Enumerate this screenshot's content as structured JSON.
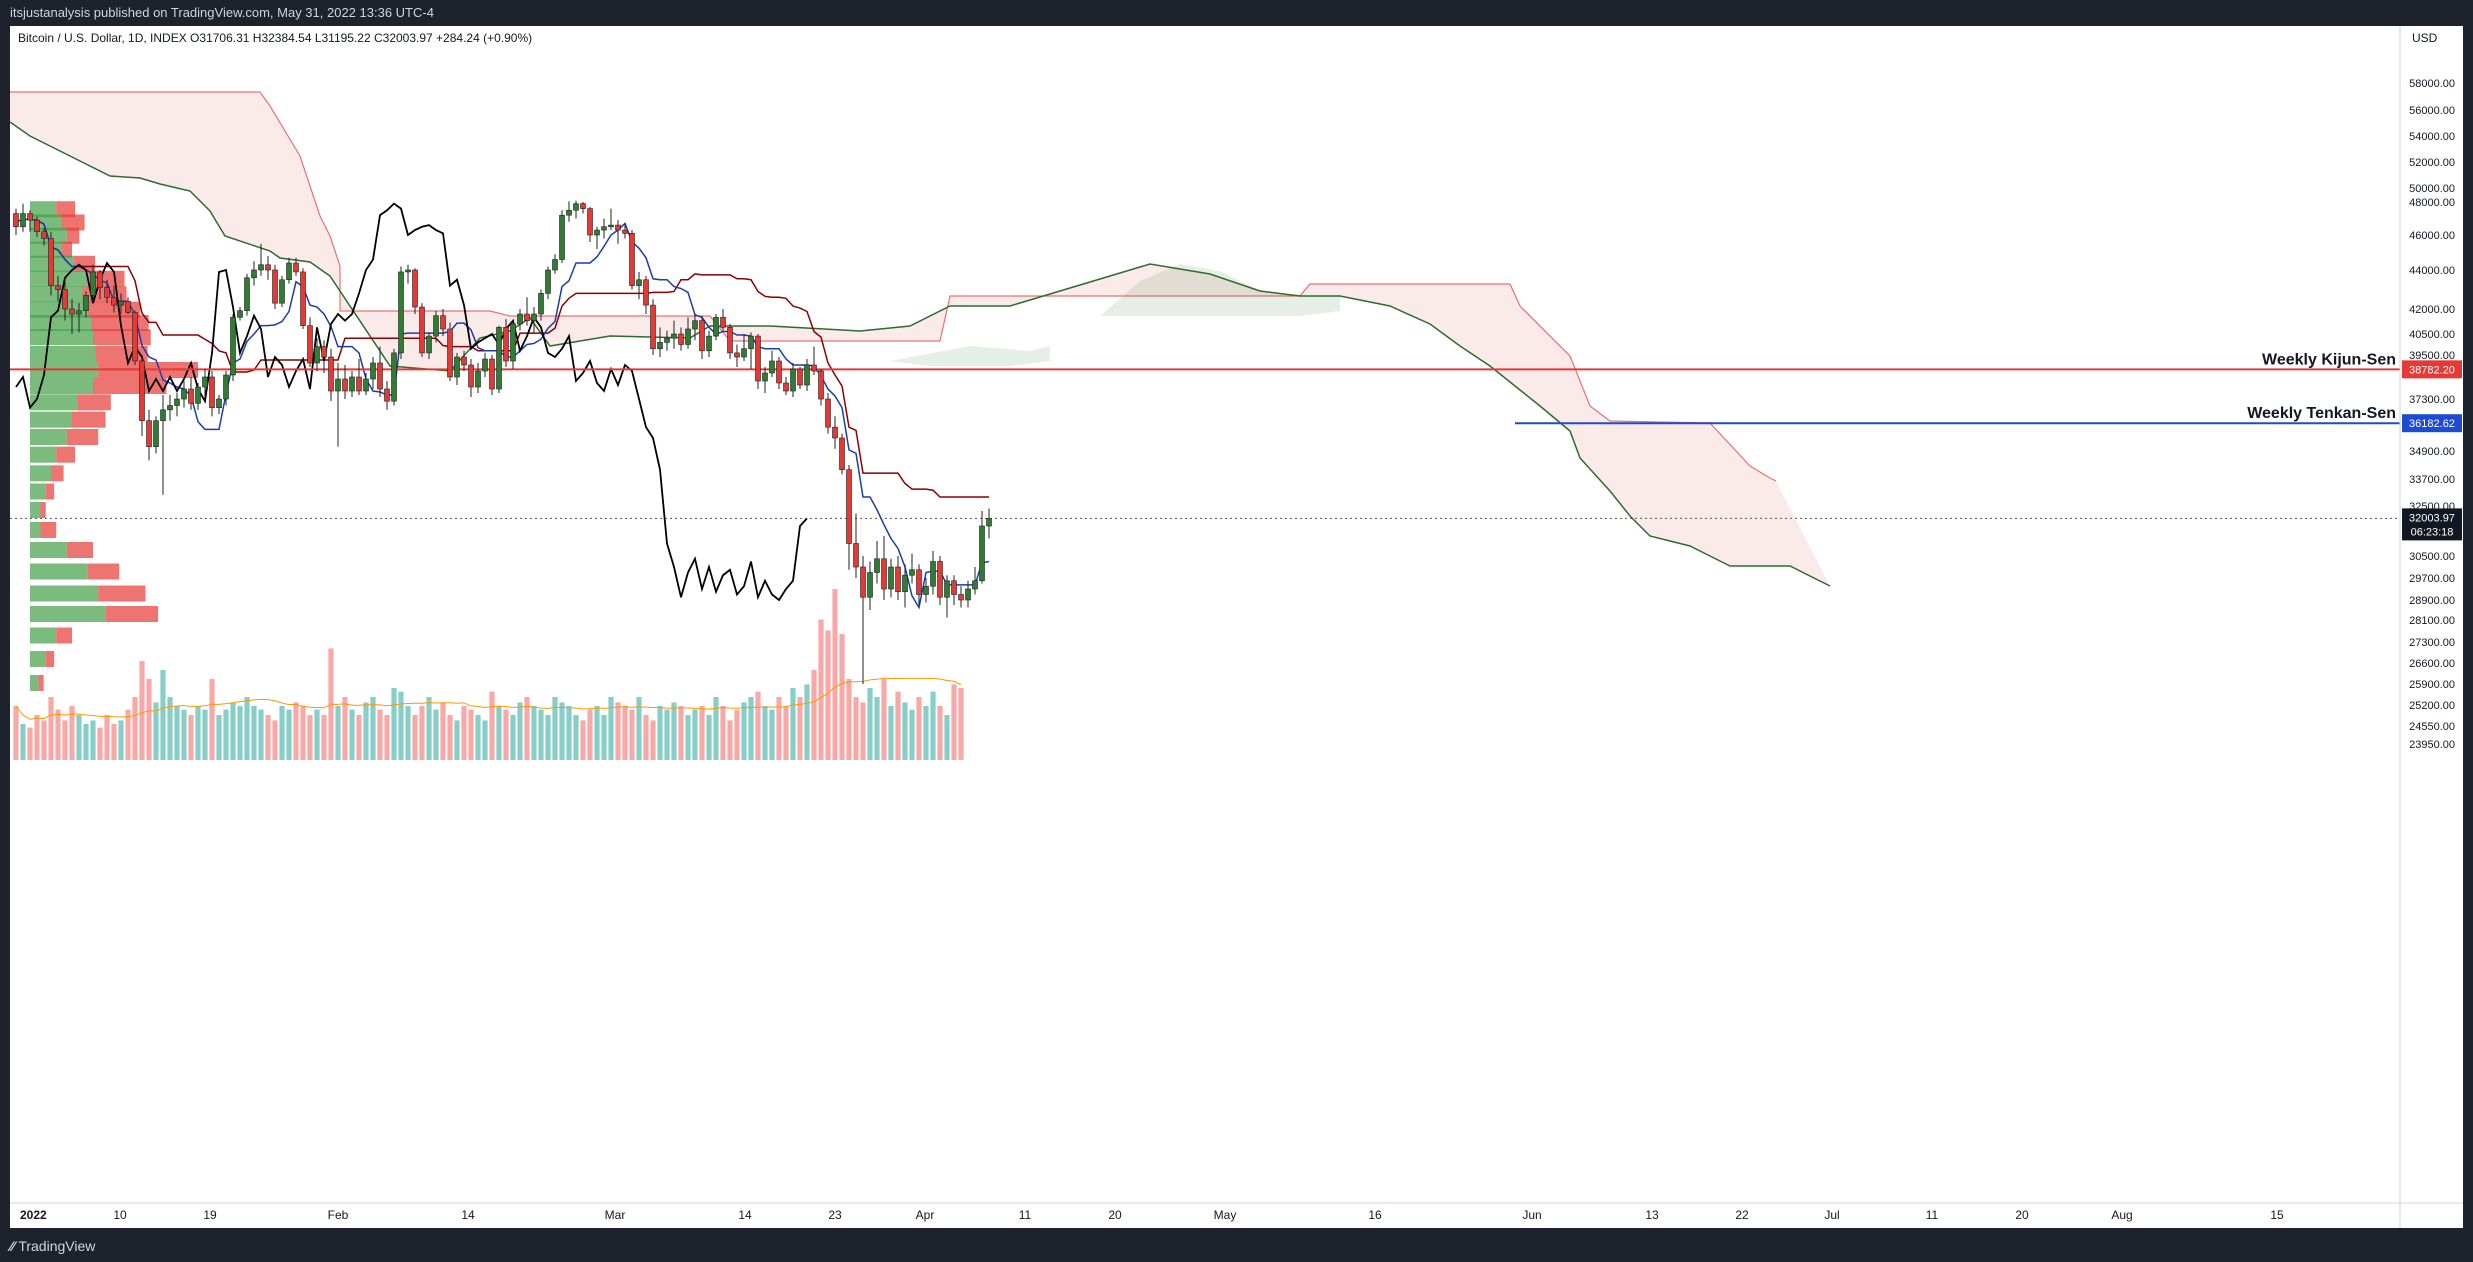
{
  "header": {
    "publisher": "itsjustanalysis published on TradingView.com, May 31, 2022 13:36 UTC-4"
  },
  "footer": {
    "brand": "TradingView"
  },
  "chart_data": {
    "type": "candlestick",
    "symbol_line": "Bitcoin / U.S. Dollar, 1D, INDEX  O31706.31  H32384.54  L31195.22  C32003.97  +284.24 (+0.90%)",
    "currency": "USD",
    "y_tick_labels": [
      "58000.00",
      "56000.00",
      "54000.00",
      "52000.00",
      "50000.00",
      "48000.00",
      "46000.00",
      "44000.00",
      "42000.00",
      "40500.00",
      "39500.00",
      "37300.00",
      "34900.00",
      "33700.00",
      "32500.00",
      "30500.00",
      "29700.00",
      "28900.00",
      "28100.00",
      "27300.00",
      "26600.00",
      "25900.00",
      "25200.00",
      "24550.00",
      "23950.00"
    ],
    "x_tick_labels": [
      "2022",
      "10",
      "19",
      "Feb",
      "14",
      "Mar",
      "14",
      "23",
      "Apr",
      "11",
      "20",
      "May",
      "16",
      "Jun",
      "13",
      "22",
      "Jul",
      "11",
      "20",
      "Aug",
      "15"
    ],
    "horizontal_lines": [
      {
        "label": "Weekly Kijun-Sen",
        "value": 38782.2,
        "value_label": "38782.20",
        "color": "#e53935"
      },
      {
        "label": "Weekly Tenkan-Sen",
        "value": 36182.62,
        "value_label": "36182.62",
        "color": "#1e4bd2"
      }
    ],
    "last_price": {
      "value": 32003.97,
      "label": "32003.97",
      "countdown": "06:23:18"
    },
    "colors": {
      "up": "#2e7d32",
      "down": "#e53935",
      "kijun": "#8b0000",
      "tenkan": "#1a3cad",
      "chikou": "#000000",
      "span_b": "#e57373",
      "span_a": "#2e6b2e"
    },
    "candles": [
      {
        "o": 47300,
        "h": 47600,
        "l": 46000,
        "c": 46500
      },
      {
        "o": 46500,
        "h": 47900,
        "l": 46200,
        "c": 47300
      },
      {
        "o": 47300,
        "h": 47500,
        "l": 46200,
        "c": 46900
      },
      {
        "o": 46900,
        "h": 47100,
        "l": 45900,
        "c": 46200
      },
      {
        "o": 46200,
        "h": 46400,
        "l": 45400,
        "c": 45800
      },
      {
        "o": 45800,
        "h": 46200,
        "l": 42700,
        "c": 43200
      },
      {
        "o": 43200,
        "h": 43700,
        "l": 42400,
        "c": 43000
      },
      {
        "o": 43000,
        "h": 43500,
        "l": 41300,
        "c": 42000
      },
      {
        "o": 42000,
        "h": 42500,
        "l": 40500,
        "c": 41700
      },
      {
        "o": 41700,
        "h": 42300,
        "l": 40600,
        "c": 41900
      },
      {
        "o": 41900,
        "h": 42900,
        "l": 41500,
        "c": 42700
      },
      {
        "o": 42700,
        "h": 44300,
        "l": 42400,
        "c": 43900
      },
      {
        "o": 43900,
        "h": 44000,
        "l": 42500,
        "c": 43100
      },
      {
        "o": 43100,
        "h": 43500,
        "l": 42300,
        "c": 42600
      },
      {
        "o": 42600,
        "h": 43200,
        "l": 41800,
        "c": 42200
      },
      {
        "o": 42200,
        "h": 42800,
        "l": 41700,
        "c": 42400
      },
      {
        "o": 42400,
        "h": 42600,
        "l": 41700,
        "c": 41800
      },
      {
        "o": 41800,
        "h": 41900,
        "l": 39000,
        "c": 39200
      },
      {
        "o": 39200,
        "h": 39500,
        "l": 35600,
        "c": 36300
      },
      {
        "o": 36300,
        "h": 36800,
        "l": 34500,
        "c": 35100
      },
      {
        "o": 35100,
        "h": 36500,
        "l": 34800,
        "c": 36300
      },
      {
        "o": 36300,
        "h": 37500,
        "l": 33000,
        "c": 36800
      },
      {
        "o": 36800,
        "h": 37500,
        "l": 36300,
        "c": 37000
      },
      {
        "o": 37000,
        "h": 37600,
        "l": 36500,
        "c": 37300
      },
      {
        "o": 37300,
        "h": 38200,
        "l": 36900,
        "c": 37800
      },
      {
        "o": 37800,
        "h": 38400,
        "l": 36800,
        "c": 37100
      },
      {
        "o": 37100,
        "h": 38100,
        "l": 36800,
        "c": 37900
      },
      {
        "o": 37900,
        "h": 38800,
        "l": 37400,
        "c": 38400
      },
      {
        "o": 38400,
        "h": 38700,
        "l": 36500,
        "c": 36900
      },
      {
        "o": 36900,
        "h": 37500,
        "l": 36600,
        "c": 37300
      },
      {
        "o": 37300,
        "h": 38700,
        "l": 37000,
        "c": 38500
      },
      {
        "o": 38500,
        "h": 41700,
        "l": 38200,
        "c": 41500
      },
      {
        "o": 41500,
        "h": 42100,
        "l": 41300,
        "c": 41900
      },
      {
        "o": 41900,
        "h": 43800,
        "l": 41600,
        "c": 43600
      },
      {
        "o": 43600,
        "h": 44500,
        "l": 43200,
        "c": 44000
      },
      {
        "o": 44000,
        "h": 45500,
        "l": 43700,
        "c": 44300
      },
      {
        "o": 44300,
        "h": 44800,
        "l": 43500,
        "c": 44000
      },
      {
        "o": 44000,
        "h": 44300,
        "l": 42000,
        "c": 42300
      },
      {
        "o": 42300,
        "h": 43700,
        "l": 42100,
        "c": 43500
      },
      {
        "o": 43500,
        "h": 44700,
        "l": 43300,
        "c": 44400
      },
      {
        "o": 44400,
        "h": 44700,
        "l": 43700,
        "c": 43900
      },
      {
        "o": 43900,
        "h": 44100,
        "l": 40800,
        "c": 41000
      },
      {
        "o": 41000,
        "h": 41500,
        "l": 38900,
        "c": 39100
      },
      {
        "o": 39100,
        "h": 40300,
        "l": 38700,
        "c": 39900
      },
      {
        "o": 39900,
        "h": 40200,
        "l": 38600,
        "c": 39400
      },
      {
        "o": 39400,
        "h": 39800,
        "l": 37200,
        "c": 37700
      },
      {
        "o": 37700,
        "h": 39100,
        "l": 35100,
        "c": 38300
      },
      {
        "o": 38300,
        "h": 39000,
        "l": 37300,
        "c": 37700
      },
      {
        "o": 37700,
        "h": 38700,
        "l": 37400,
        "c": 38400
      },
      {
        "o": 38400,
        "h": 39300,
        "l": 37500,
        "c": 37700
      },
      {
        "o": 37700,
        "h": 38600,
        "l": 37500,
        "c": 38300
      },
      {
        "o": 38300,
        "h": 39400,
        "l": 37800,
        "c": 39100
      },
      {
        "o": 39100,
        "h": 39900,
        "l": 37400,
        "c": 37800
      },
      {
        "o": 37800,
        "h": 38200,
        "l": 36800,
        "c": 37200
      },
      {
        "o": 37200,
        "h": 39800,
        "l": 37000,
        "c": 39600
      },
      {
        "o": 39600,
        "h": 44200,
        "l": 39300,
        "c": 43900
      },
      {
        "o": 43900,
        "h": 44300,
        "l": 43300,
        "c": 44000
      },
      {
        "o": 44000,
        "h": 44100,
        "l": 41700,
        "c": 42100
      },
      {
        "o": 42100,
        "h": 42300,
        "l": 39400,
        "c": 39600
      },
      {
        "o": 39600,
        "h": 40600,
        "l": 39300,
        "c": 40400
      },
      {
        "o": 40400,
        "h": 41900,
        "l": 40100,
        "c": 41600
      },
      {
        "o": 41600,
        "h": 42000,
        "l": 40400,
        "c": 40800
      },
      {
        "o": 40800,
        "h": 41200,
        "l": 38200,
        "c": 38400
      },
      {
        "o": 38400,
        "h": 39600,
        "l": 38000,
        "c": 39400
      },
      {
        "o": 39400,
        "h": 39700,
        "l": 38700,
        "c": 39000
      },
      {
        "o": 39000,
        "h": 39300,
        "l": 37400,
        "c": 37900
      },
      {
        "o": 37900,
        "h": 39100,
        "l": 37600,
        "c": 38700
      },
      {
        "o": 38700,
        "h": 39600,
        "l": 38400,
        "c": 39300
      },
      {
        "o": 39300,
        "h": 39500,
        "l": 37500,
        "c": 37800
      },
      {
        "o": 37800,
        "h": 41000,
        "l": 37600,
        "c": 40900
      },
      {
        "o": 40900,
        "h": 41400,
        "l": 38900,
        "c": 39200
      },
      {
        "o": 39200,
        "h": 41300,
        "l": 38800,
        "c": 41100
      },
      {
        "o": 41100,
        "h": 42000,
        "l": 40700,
        "c": 41700
      },
      {
        "o": 41700,
        "h": 42600,
        "l": 41000,
        "c": 41300
      },
      {
        "o": 41300,
        "h": 42100,
        "l": 40600,
        "c": 41700
      },
      {
        "o": 41700,
        "h": 43000,
        "l": 41300,
        "c": 42800
      },
      {
        "o": 42800,
        "h": 44200,
        "l": 42500,
        "c": 44000
      },
      {
        "o": 44000,
        "h": 44900,
        "l": 43800,
        "c": 44600
      },
      {
        "o": 44600,
        "h": 47500,
        "l": 44400,
        "c": 47200
      },
      {
        "o": 47200,
        "h": 48100,
        "l": 46800,
        "c": 47500
      },
      {
        "o": 47500,
        "h": 48200,
        "l": 47000,
        "c": 47900
      },
      {
        "o": 47900,
        "h": 48000,
        "l": 47300,
        "c": 47600
      },
      {
        "o": 47600,
        "h": 47700,
        "l": 45600,
        "c": 46000
      },
      {
        "o": 46000,
        "h": 46500,
        "l": 45200,
        "c": 46300
      },
      {
        "o": 46300,
        "h": 47000,
        "l": 45800,
        "c": 46500
      },
      {
        "o": 46500,
        "h": 47600,
        "l": 46300,
        "c": 46600
      },
      {
        "o": 46600,
        "h": 46900,
        "l": 45500,
        "c": 46300
      },
      {
        "o": 46300,
        "h": 46700,
        "l": 45800,
        "c": 46100
      },
      {
        "o": 46100,
        "h": 46300,
        "l": 43000,
        "c": 43200
      },
      {
        "o": 43200,
        "h": 43900,
        "l": 42500,
        "c": 43500
      },
      {
        "o": 43500,
        "h": 43700,
        "l": 41700,
        "c": 42200
      },
      {
        "o": 42200,
        "h": 42500,
        "l": 39500,
        "c": 39800
      },
      {
        "o": 39800,
        "h": 40900,
        "l": 39400,
        "c": 40100
      },
      {
        "o": 40100,
        "h": 40700,
        "l": 39700,
        "c": 40300
      },
      {
        "o": 40300,
        "h": 41300,
        "l": 39800,
        "c": 40500
      },
      {
        "o": 40500,
        "h": 40900,
        "l": 39700,
        "c": 40000
      },
      {
        "o": 40000,
        "h": 41500,
        "l": 39800,
        "c": 40800
      },
      {
        "o": 40800,
        "h": 41700,
        "l": 40200,
        "c": 41300
      },
      {
        "o": 41300,
        "h": 41600,
        "l": 39300,
        "c": 39700
      },
      {
        "o": 39700,
        "h": 40700,
        "l": 39400,
        "c": 40400
      },
      {
        "o": 40400,
        "h": 41700,
        "l": 40200,
        "c": 41500
      },
      {
        "o": 41500,
        "h": 42000,
        "l": 40700,
        "c": 40900
      },
      {
        "o": 40900,
        "h": 41100,
        "l": 39300,
        "c": 39600
      },
      {
        "o": 39600,
        "h": 40000,
        "l": 38900,
        "c": 39400
      },
      {
        "o": 39400,
        "h": 40500,
        "l": 39200,
        "c": 39800
      },
      {
        "o": 39800,
        "h": 40600,
        "l": 38800,
        "c": 40400
      },
      {
        "o": 40400,
        "h": 40500,
        "l": 37800,
        "c": 38200
      },
      {
        "o": 38200,
        "h": 38900,
        "l": 37600,
        "c": 38600
      },
      {
        "o": 38600,
        "h": 39700,
        "l": 38400,
        "c": 39200
      },
      {
        "o": 39200,
        "h": 39400,
        "l": 37800,
        "c": 38100
      },
      {
        "o": 38100,
        "h": 38400,
        "l": 37500,
        "c": 37700
      },
      {
        "o": 37700,
        "h": 39100,
        "l": 37400,
        "c": 38800
      },
      {
        "o": 38800,
        "h": 38900,
        "l": 37800,
        "c": 38000
      },
      {
        "o": 38000,
        "h": 39300,
        "l": 37700,
        "c": 39000
      },
      {
        "o": 39000,
        "h": 39900,
        "l": 38500,
        "c": 38700
      },
      {
        "o": 38700,
        "h": 38800,
        "l": 37000,
        "c": 37300
      },
      {
        "o": 37300,
        "h": 37600,
        "l": 35700,
        "c": 36000
      },
      {
        "o": 36000,
        "h": 36500,
        "l": 35000,
        "c": 35500
      },
      {
        "o": 35500,
        "h": 35700,
        "l": 33900,
        "c": 34100
      },
      {
        "o": 34100,
        "h": 34300,
        "l": 30000,
        "c": 31000
      },
      {
        "o": 31000,
        "h": 32200,
        "l": 29700,
        "c": 30100
      },
      {
        "o": 30100,
        "h": 30500,
        "l": 25900,
        "c": 29000
      },
      {
        "o": 29000,
        "h": 30300,
        "l": 28500,
        "c": 29900
      },
      {
        "o": 29900,
        "h": 31100,
        "l": 29500,
        "c": 30400
      },
      {
        "o": 30400,
        "h": 31300,
        "l": 28900,
        "c": 29300
      },
      {
        "o": 29300,
        "h": 30400,
        "l": 29000,
        "c": 30100
      },
      {
        "o": 30100,
        "h": 30500,
        "l": 28900,
        "c": 29200
      },
      {
        "o": 29200,
        "h": 30200,
        "l": 28600,
        "c": 29800
      },
      {
        "o": 29800,
        "h": 30600,
        "l": 29500,
        "c": 30000
      },
      {
        "o": 30000,
        "h": 30200,
        "l": 28700,
        "c": 29100
      },
      {
        "o": 29100,
        "h": 29700,
        "l": 28800,
        "c": 29400
      },
      {
        "o": 29400,
        "h": 30700,
        "l": 29100,
        "c": 30300
      },
      {
        "o": 30300,
        "h": 30500,
        "l": 28700,
        "c": 29000
      },
      {
        "o": 29000,
        "h": 29800,
        "l": 28200,
        "c": 29600
      },
      {
        "o": 29600,
        "h": 29800,
        "l": 28700,
        "c": 29100
      },
      {
        "o": 29100,
        "h": 29400,
        "l": 28600,
        "c": 28900
      },
      {
        "o": 28900,
        "h": 29600,
        "l": 28600,
        "c": 29300
      },
      {
        "o": 29300,
        "h": 30100,
        "l": 29100,
        "c": 29600
      },
      {
        "o": 29600,
        "h": 32300,
        "l": 29500,
        "c": 31700
      },
      {
        "o": 31700,
        "h": 32400,
        "l": 31200,
        "c": 32004
      }
    ],
    "volume": [
      0.3,
      0.2,
      0.18,
      0.25,
      0.22,
      0.35,
      0.28,
      0.22,
      0.3,
      0.25,
      0.2,
      0.22,
      0.18,
      0.25,
      0.2,
      0.22,
      0.28,
      0.35,
      0.55,
      0.45,
      0.32,
      0.5,
      0.35,
      0.3,
      0.28,
      0.25,
      0.3,
      0.28,
      0.45,
      0.25,
      0.28,
      0.32,
      0.3,
      0.35,
      0.3,
      0.28,
      0.25,
      0.22,
      0.3,
      0.28,
      0.32,
      0.3,
      0.25,
      0.28,
      0.25,
      0.62,
      0.3,
      0.35,
      0.28,
      0.25,
      0.32,
      0.35,
      0.28,
      0.25,
      0.4,
      0.38,
      0.3,
      0.25,
      0.3,
      0.35,
      0.28,
      0.32,
      0.25,
      0.22,
      0.3,
      0.28,
      0.25,
      0.22,
      0.38,
      0.3,
      0.28,
      0.25,
      0.32,
      0.35,
      0.3,
      0.28,
      0.25,
      0.35,
      0.32,
      0.3,
      0.25,
      0.22,
      0.28,
      0.3,
      0.25,
      0.35,
      0.32,
      0.3,
      0.28,
      0.35,
      0.25,
      0.22,
      0.3,
      0.28,
      0.32,
      0.3,
      0.25,
      0.28,
      0.3,
      0.25,
      0.35,
      0.3,
      0.22,
      0.28,
      0.32,
      0.35,
      0.38,
      0.3,
      0.28,
      0.35,
      0.3,
      0.4,
      0.35,
      0.42,
      0.5,
      0.78,
      0.72,
      0.95,
      0.7,
      0.45,
      0.35,
      0.32,
      0.4,
      0.35,
      0.45,
      0.3,
      0.38,
      0.32,
      0.28,
      0.35,
      0.3,
      0.38,
      0.3,
      0.25,
      0.42,
      0.4
    ],
    "volume_profile": [
      {
        "price": 47500,
        "buy": 0.25,
        "sell": 0.18
      },
      {
        "price": 46700,
        "buy": 0.3,
        "sell": 0.22
      },
      {
        "price": 45900,
        "buy": 0.35,
        "sell": 0.12
      },
      {
        "price": 45100,
        "buy": 0.3,
        "sell": 0.1
      },
      {
        "price": 44300,
        "buy": 0.42,
        "sell": 0.2
      },
      {
        "price": 43500,
        "buy": 0.55,
        "sell": 0.35
      },
      {
        "price": 42700,
        "buy": 0.5,
        "sell": 0.42
      },
      {
        "price": 41900,
        "buy": 0.55,
        "sell": 0.5
      },
      {
        "price": 41100,
        "buy": 0.58,
        "sell": 0.55
      },
      {
        "price": 40300,
        "buy": 0.6,
        "sell": 0.55
      },
      {
        "price": 39500,
        "buy": 0.62,
        "sell": 0.5
      },
      {
        "price": 38700,
        "buy": 0.65,
        "sell": 0.95
      },
      {
        "price": 37900,
        "buy": 0.6,
        "sell": 0.7
      },
      {
        "price": 37100,
        "buy": 0.45,
        "sell": 0.32
      },
      {
        "price": 36300,
        "buy": 0.4,
        "sell": 0.32
      },
      {
        "price": 35500,
        "buy": 0.35,
        "sell": 0.3
      },
      {
        "price": 34700,
        "buy": 0.25,
        "sell": 0.18
      },
      {
        "price": 33900,
        "buy": 0.2,
        "sell": 0.12
      },
      {
        "price": 33100,
        "buy": 0.15,
        "sell": 0.08
      },
      {
        "price": 32300,
        "buy": 0.1,
        "sell": 0.05
      },
      {
        "price": 31500,
        "buy": 0.1,
        "sell": 0.15
      },
      {
        "price": 30700,
        "buy": 0.35,
        "sell": 0.25
      },
      {
        "price": 29900,
        "buy": 0.55,
        "sell": 0.3
      },
      {
        "price": 29100,
        "buy": 0.65,
        "sell": 0.45
      },
      {
        "price": 28300,
        "buy": 0.72,
        "sell": 0.5
      },
      {
        "price": 27500,
        "buy": 0.25,
        "sell": 0.15
      },
      {
        "price": 26700,
        "buy": 0.15,
        "sell": 0.08
      },
      {
        "price": 25900,
        "buy": 0.08,
        "sell": 0.05
      }
    ]
  }
}
